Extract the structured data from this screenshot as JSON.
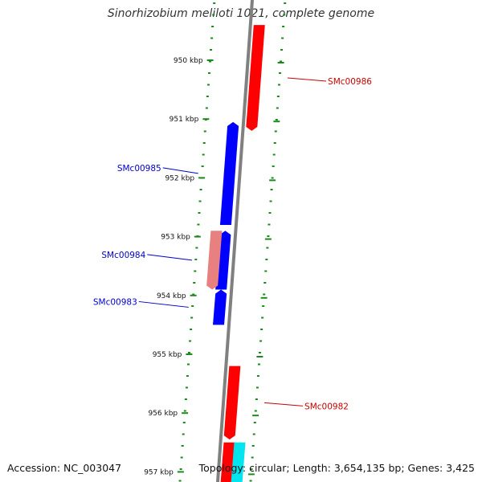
{
  "title": "Sinorhizobium meliloti 1021, complete genome",
  "footer": {
    "accession": "Accession: NC_003047",
    "summary": "Topology: circular; Length: 3,654,135 bp; Genes: 3,425"
  },
  "colors": {
    "forward_gene": "#ff0000",
    "forward_gene_faded": "#e88080",
    "reverse_gene": "#0000ff",
    "rna_gene": "#00e5ee",
    "backbone": "#808080",
    "tick": "#1a8a1a",
    "forward_label": "#cc0000",
    "reverse_label": "#0000cc"
  },
  "ruler": {
    "unit": "kbp",
    "ticks": [
      {
        "kbp": 950,
        "label": "950 kbp"
      },
      {
        "kbp": 951,
        "label": "951 kbp"
      },
      {
        "kbp": 952,
        "label": "952 kbp"
      },
      {
        "kbp": 953,
        "label": "953 kbp"
      },
      {
        "kbp": 954,
        "label": "954 kbp"
      },
      {
        "kbp": 955,
        "label": "955 kbp"
      },
      {
        "kbp": 956,
        "label": "956 kbp"
      },
      {
        "kbp": 957,
        "label": "957 kbp"
      }
    ]
  },
  "genes": [
    {
      "id": "SMc00986",
      "strand": "forward",
      "start_kbp": 949.4,
      "end_kbp": 951.2,
      "style": "normal",
      "label": "SMc00986"
    },
    {
      "id": "SMc00985",
      "strand": "reverse",
      "start_kbp": 951.05,
      "end_kbp": 952.8,
      "style": "normal",
      "label": "SMc00985"
    },
    {
      "id": "SMc00984",
      "strand": "reverse",
      "start_kbp": 952.9,
      "end_kbp": 953.9,
      "style": "normal",
      "label": "SMc00984"
    },
    {
      "id": "SMc00984-faded",
      "strand": "forward",
      "start_kbp": 952.9,
      "end_kbp": 953.9,
      "style": "faded",
      "label": ""
    },
    {
      "id": "SMc00983",
      "strand": "reverse",
      "start_kbp": 953.9,
      "end_kbp": 954.5,
      "style": "normal",
      "label": "SMc00983"
    },
    {
      "id": "SMc00982",
      "strand": "forward",
      "start_kbp": 955.2,
      "end_kbp": 956.45,
      "style": "normal",
      "label": "SMc00982"
    },
    {
      "id": "SMc00981",
      "strand": "forward",
      "start_kbp": 956.5,
      "end_kbp": 957.3,
      "style": "normal",
      "label": ""
    },
    {
      "id": "SMc-rna",
      "strand": "forward",
      "start_kbp": 956.5,
      "end_kbp": 957.3,
      "style": "rna",
      "label": ""
    }
  ]
}
